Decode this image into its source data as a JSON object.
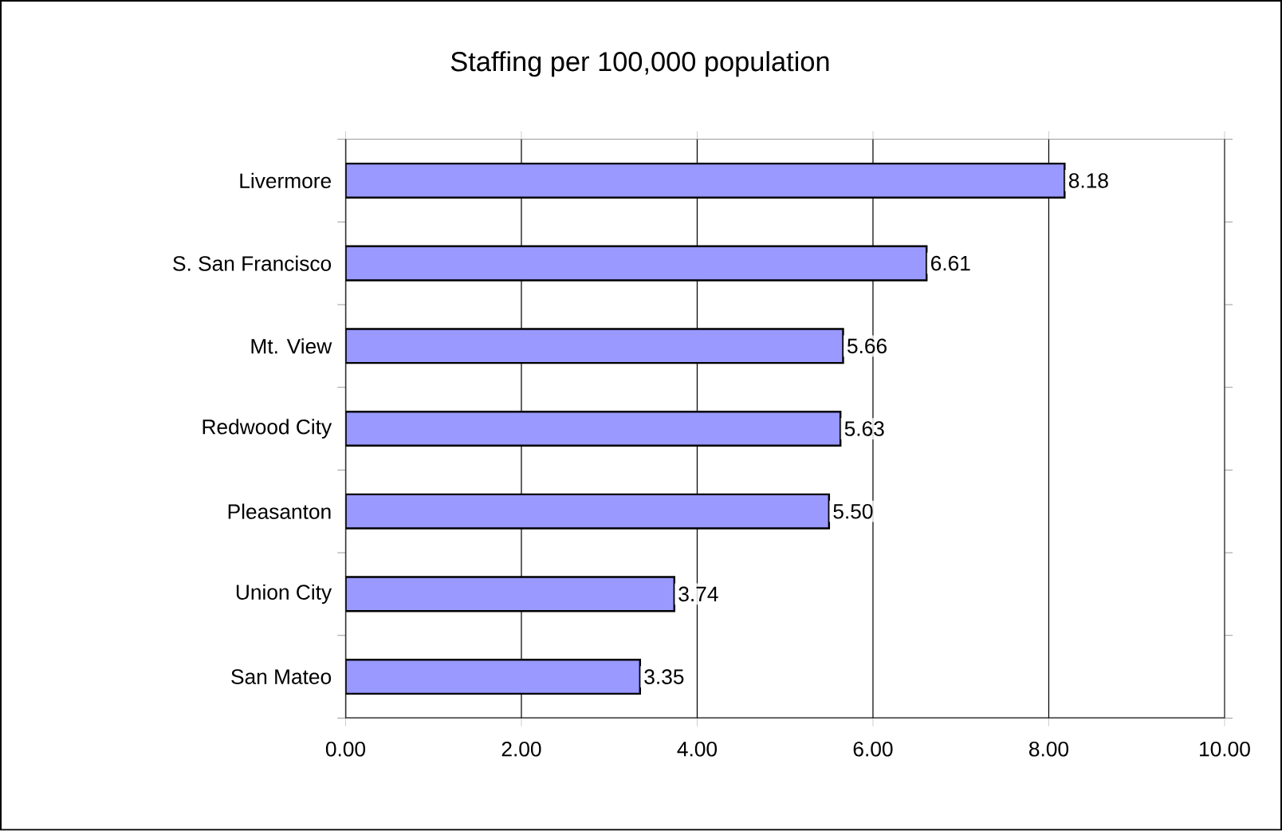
{
  "chart_data": {
    "type": "bar",
    "orientation": "horizontal",
    "title": "Staffing per 100,000 population",
    "categories": [
      "Livermore",
      "S. San Francisco",
      "Mt. View",
      "Redwood City",
      "Pleasanton",
      "Union City",
      "San Mateo"
    ],
    "values": [
      8.18,
      6.61,
      5.66,
      5.63,
      5.5,
      3.74,
      3.35
    ],
    "value_labels": [
      "8.18",
      "6.61",
      "5.66",
      "5.63",
      "5.50",
      "3.74",
      "3.35"
    ],
    "color": "#9999ff",
    "xlim": [
      0,
      10
    ],
    "xticks": [
      {
        "value": 0,
        "label": "0.00"
      },
      {
        "value": 2,
        "label": "2.00"
      },
      {
        "value": 4,
        "label": "4.00"
      },
      {
        "value": 6,
        "label": "6.00"
      },
      {
        "value": 8,
        "label": "8.00"
      },
      {
        "value": 10,
        "label": "10.00"
      }
    ],
    "grid": "x"
  }
}
